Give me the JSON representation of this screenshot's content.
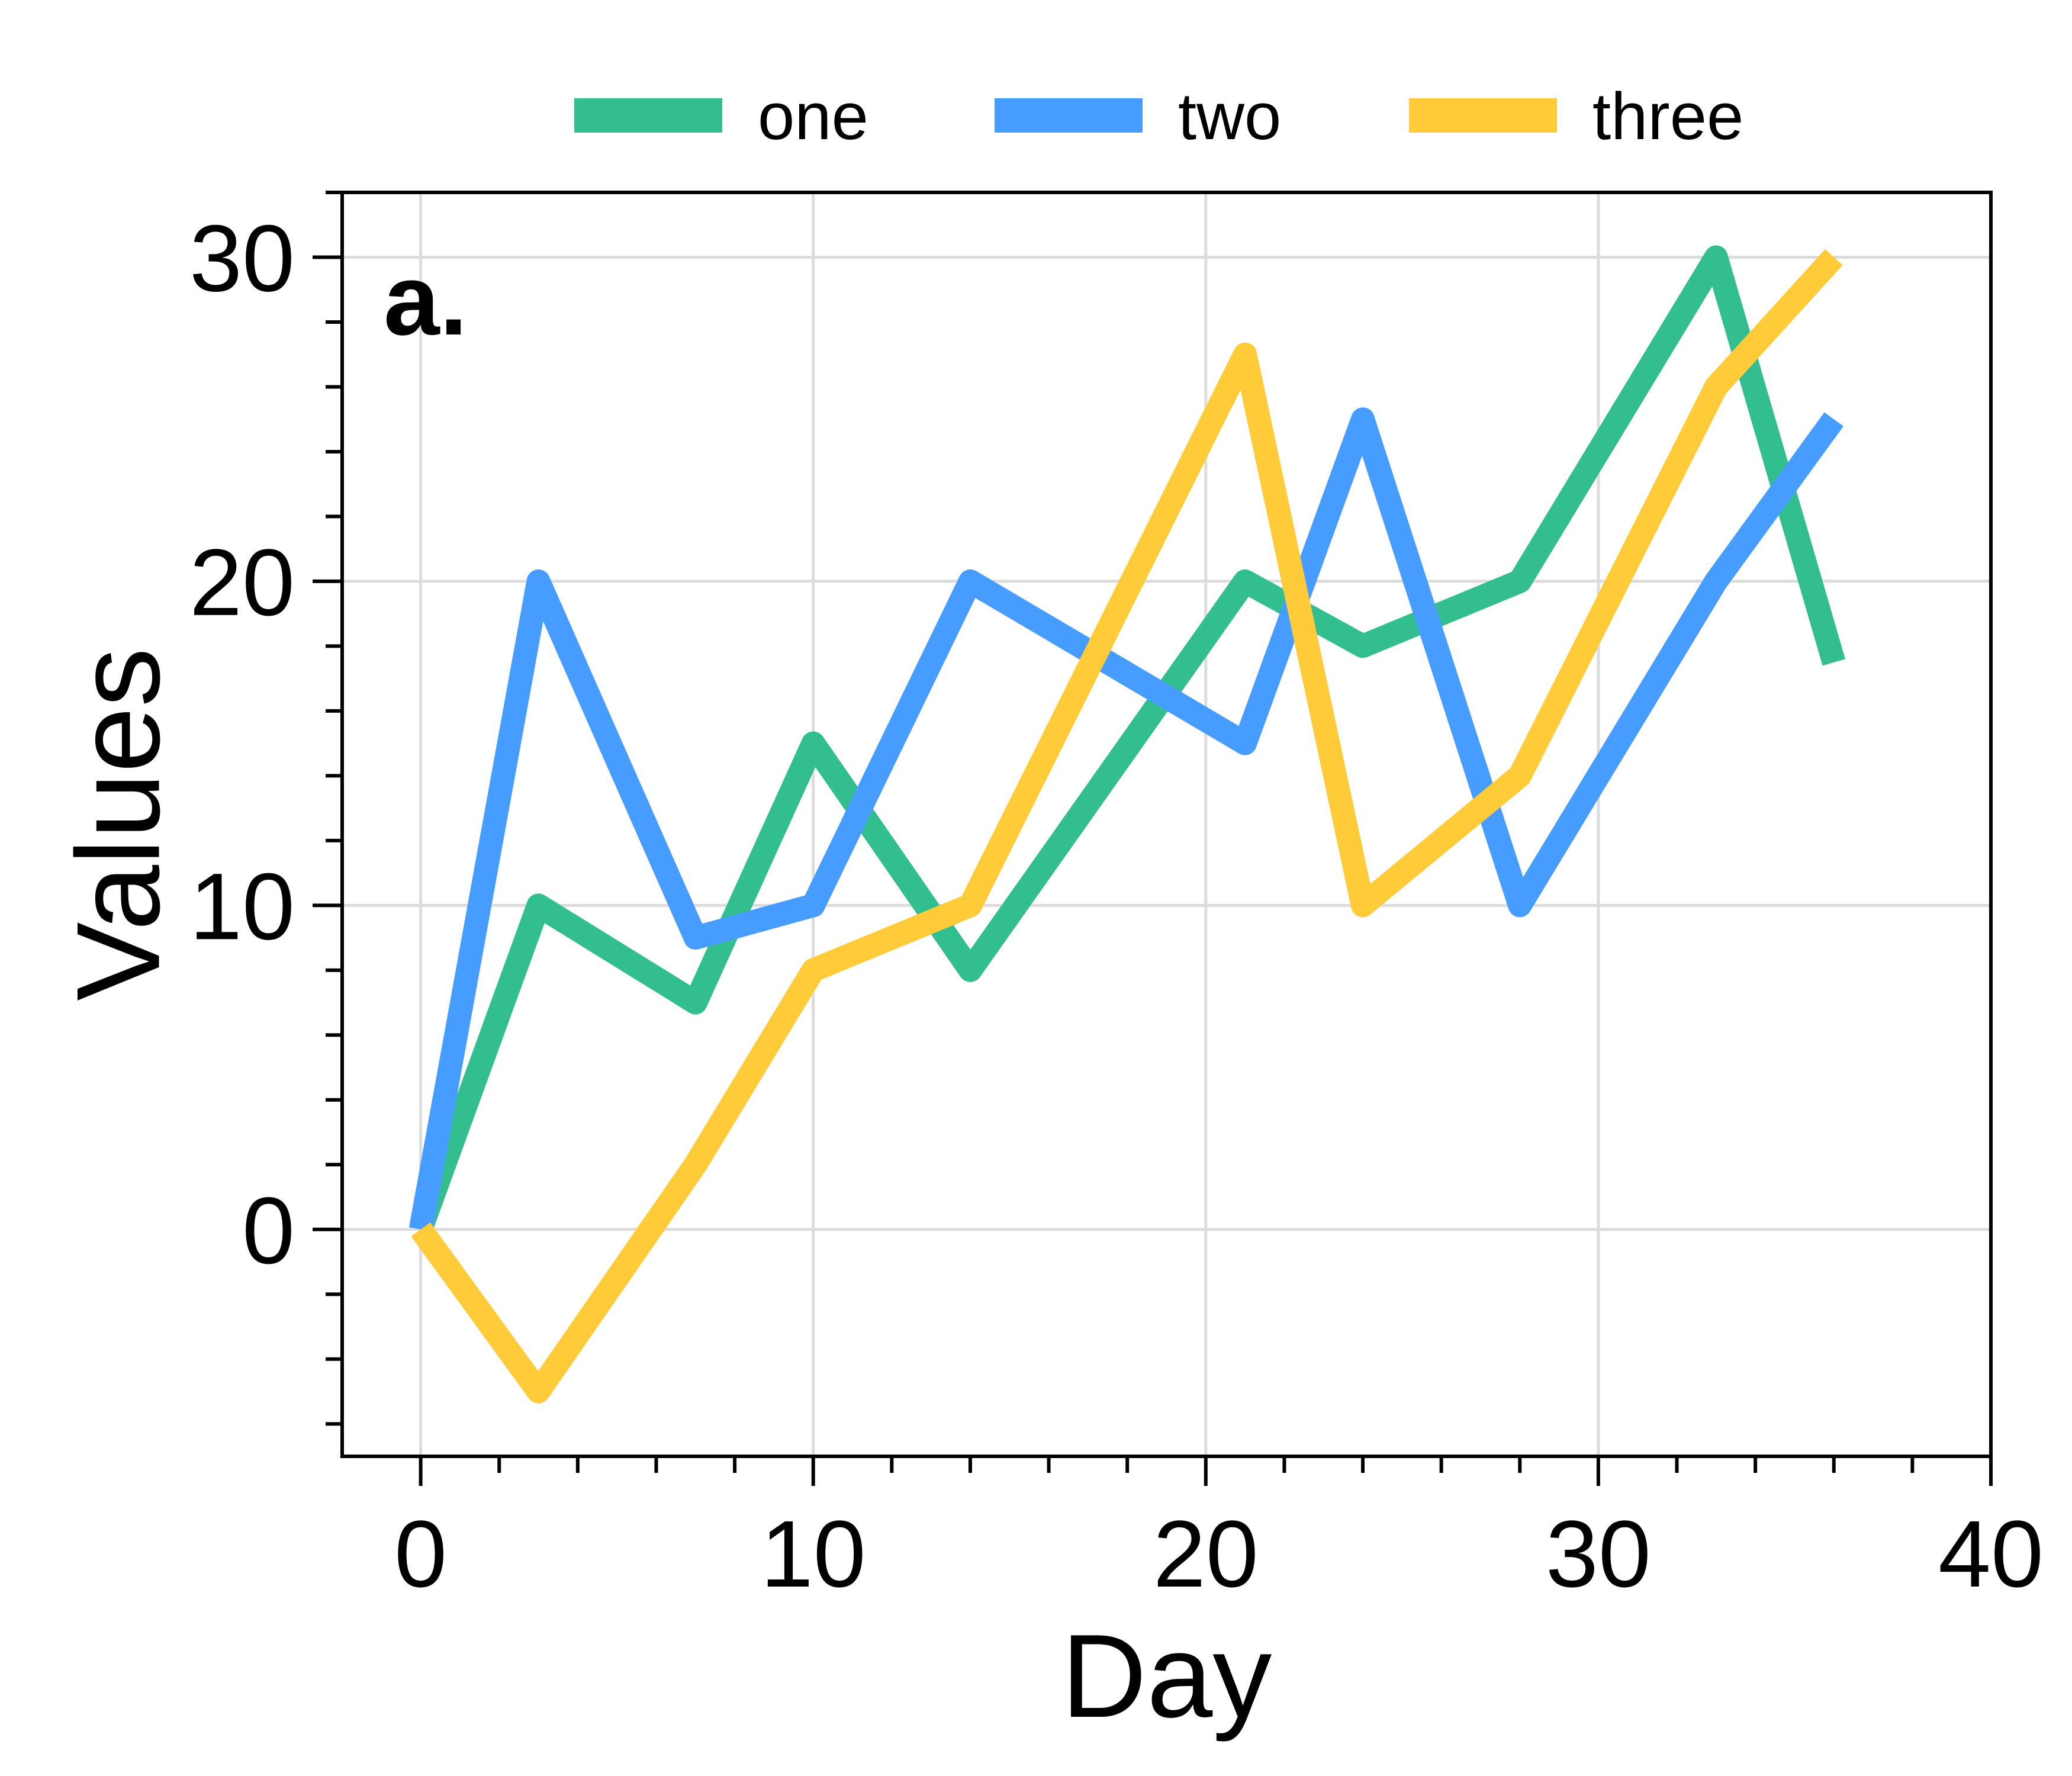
{
  "chart_data": {
    "type": "line",
    "panel_label": "a.",
    "xlabel": "Day",
    "ylabel": "Values",
    "xlim": [
      -2,
      40
    ],
    "ylim": [
      -7,
      32
    ],
    "x_ticks": [
      0,
      10,
      20,
      30,
      40
    ],
    "y_ticks": [
      0,
      10,
      20,
      30
    ],
    "x_tick_labels": [
      "0",
      "10",
      "20",
      "30",
      "40"
    ],
    "y_tick_labels": [
      "0",
      "10",
      "20",
      "30"
    ],
    "x_minor_step": 2,
    "y_minor_step": 2,
    "grid": true,
    "legend_position": "top-center",
    "series": [
      {
        "name": "one",
        "color": "#32BE8F",
        "x": [
          0,
          3,
          7,
          10,
          14,
          21,
          24,
          28,
          33,
          36
        ],
        "y": [
          0,
          10,
          7,
          15,
          8,
          20,
          18,
          20,
          30,
          17.5
        ]
      },
      {
        "name": "two",
        "color": "#479DFF",
        "x": [
          0,
          3,
          7,
          10,
          14,
          21,
          24,
          28,
          33,
          36
        ],
        "y": [
          0,
          20,
          9,
          10,
          20,
          15,
          25,
          10,
          20,
          25
        ]
      },
      {
        "name": "three",
        "color": "#FFCB39",
        "x": [
          0,
          3,
          7,
          10,
          14,
          21,
          24,
          28,
          33,
          36
        ],
        "y": [
          0,
          -5,
          2,
          8,
          10,
          27,
          10,
          14,
          26,
          30
        ]
      }
    ]
  }
}
